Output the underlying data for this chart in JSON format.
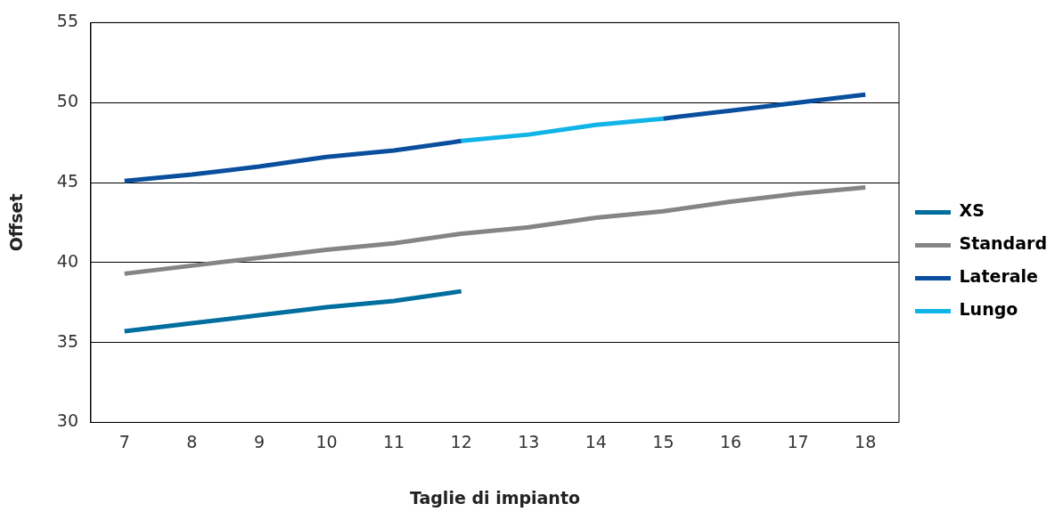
{
  "chart_data": {
    "type": "line",
    "xlabel": "Taglie di impianto",
    "ylabel": "Offset",
    "categories": [
      "7",
      "8",
      "9",
      "10",
      "11",
      "12",
      "13",
      "14",
      "15",
      "16",
      "17",
      "18"
    ],
    "series": [
      {
        "name": "XS",
        "color": "#006e9e",
        "values": [
          35.7,
          36.2,
          36.7,
          37.2,
          37.6,
          38.2,
          null,
          null,
          null,
          null,
          null,
          null
        ]
      },
      {
        "name": "Standard",
        "color": "#858588",
        "values": [
          39.3,
          39.8,
          40.3,
          40.8,
          41.2,
          41.8,
          42.2,
          42.8,
          43.2,
          43.8,
          44.3,
          44.7
        ]
      },
      {
        "name": "Laterale",
        "color": "#0a4f9e",
        "values": [
          45.1,
          45.5,
          46.0,
          46.6,
          47.0,
          47.6,
          null,
          null,
          49.0,
          49.5,
          50.0,
          50.5
        ]
      },
      {
        "name": "Lungo",
        "color": "#10b4e6",
        "values": [
          null,
          null,
          null,
          null,
          null,
          47.6,
          48.0,
          48.6,
          49.0,
          null,
          null,
          null
        ]
      }
    ],
    "ylim": [
      30,
      55
    ],
    "yticks": [
      30,
      35,
      40,
      45,
      50,
      55
    ],
    "grid": "y",
    "legend": "right",
    "marker": "none",
    "line_style": "solid"
  }
}
